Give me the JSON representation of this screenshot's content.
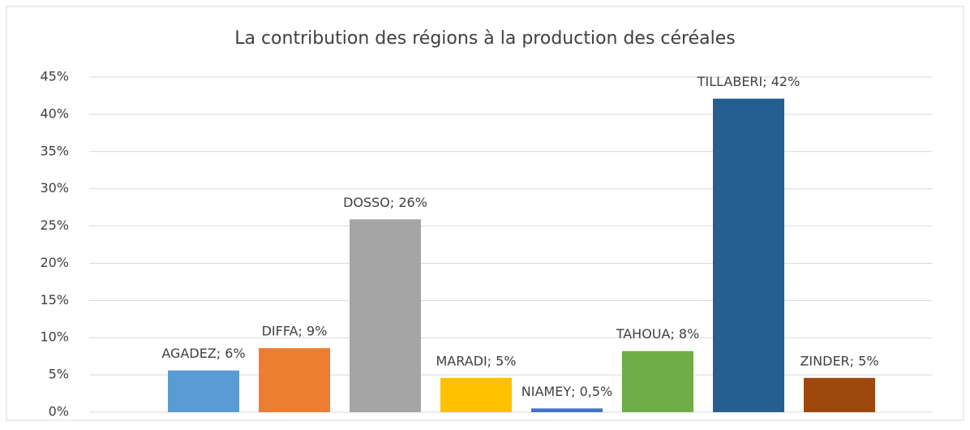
{
  "chart_data": {
    "type": "bar",
    "title": "La contribution des régions à la production des céréales",
    "values": [
      5.6,
      8.6,
      25.9,
      4.6,
      0.5,
      8.2,
      42.1,
      4.6
    ],
    "value_labels": [
      "AGADEZ; 6%",
      "DIFFA; 9%",
      "DOSSO; 26%",
      "MARADI; 5%",
      "NIAMEY; 0,5%",
      "TAHOUA; 8%",
      "TILLABERI; 42%",
      "ZINDER; 5%"
    ],
    "colors": [
      "#5b9bd5",
      "#ed7d31",
      "#a5a5a5",
      "#ffc000",
      "#4472c4",
      "#70ad47",
      "#255e91",
      "#9e480e"
    ],
    "ylim": [
      0,
      45
    ],
    "yticks": [
      {
        "value": 0,
        "label": "0%"
      },
      {
        "value": 5,
        "label": "5%"
      },
      {
        "value": 10,
        "label": "10%"
      },
      {
        "value": 15,
        "label": "15%"
      },
      {
        "value": 20,
        "label": "20%"
      },
      {
        "value": 25,
        "label": "25%"
      },
      {
        "value": 30,
        "label": "30%"
      },
      {
        "value": 35,
        "label": "35%"
      },
      {
        "value": 40,
        "label": "40%"
      },
      {
        "value": 45,
        "label": "45%"
      }
    ],
    "grid": true
  }
}
